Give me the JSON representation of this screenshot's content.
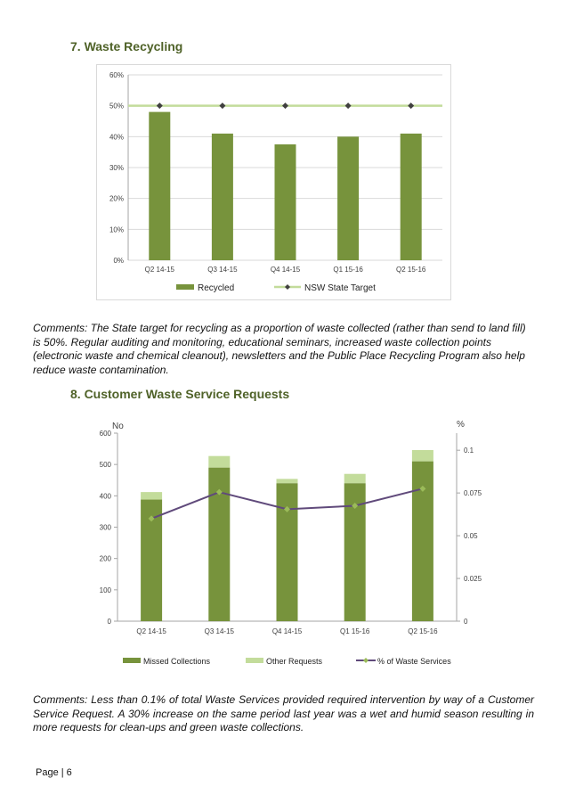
{
  "section7": {
    "title": "7.  Waste Recycling"
  },
  "section8": {
    "title": "8.  Customer Waste Service Requests"
  },
  "comment7": "Comments: The State target for recycling as a proportion of waste collected (rather than send to land fill) is 50%. Regular auditing and monitoring, educational seminars, increased waste collection points (electronic waste and chemical cleanout), newsletters and the Public Place Recycling Program also help reduce waste contamination.",
  "comment8": "Comments: Less than 0.1% of total Waste Services provided required intervention by way of a Customer Service Request. A 30% increase on the same period last year was a wet and humid season resulting in more requests for clean-ups and green waste collections.",
  "footer": "Page | 6",
  "colors": {
    "bar": "#77933c",
    "bar_light": "#c3dc9b",
    "target_line": "#c3dc9b",
    "marker": "#404040",
    "line": "#604a7b",
    "title": "#4f6228"
  },
  "chart_data": [
    {
      "type": "bar",
      "title": "",
      "categories": [
        "Q2 14-15",
        "Q3 14-15",
        "Q4 14-15",
        "Q1 15-16",
        "Q2 15-16"
      ],
      "series": [
        {
          "name": "Recycled",
          "type": "bar",
          "values": [
            48,
            41,
            37.5,
            40,
            41
          ]
        },
        {
          "name": "NSW State Target",
          "type": "line",
          "values": [
            50,
            50,
            50,
            50,
            50
          ]
        }
      ],
      "ylim": [
        0,
        60
      ],
      "yticks": [
        0,
        10,
        20,
        30,
        40,
        50,
        60
      ],
      "ytick_labels": [
        "0%",
        "10%",
        "20%",
        "30%",
        "40%",
        "50%",
        "60%"
      ],
      "xlabel": "",
      "ylabel": ""
    },
    {
      "type": "bar",
      "title": "",
      "categories": [
        "Q2 14-15",
        "Q3 14-15",
        "Q4 14-15",
        "Q1 15-16",
        "Q2 15-16"
      ],
      "series": [
        {
          "name": "Missed Collections",
          "type": "bar",
          "stack": true,
          "values": [
            388,
            490,
            440,
            440,
            510
          ]
        },
        {
          "name": "Other Requests",
          "type": "bar",
          "stack": true,
          "values": [
            24,
            37,
            14,
            30,
            36
          ]
        },
        {
          "name": "% of Waste Services",
          "type": "line",
          "axis": "right",
          "values": [
            0.06,
            0.0755,
            0.0655,
            0.0675,
            0.0775
          ]
        }
      ],
      "ylabel": "No",
      "ylim": [
        0,
        600
      ],
      "yticks": [
        0,
        100,
        200,
        300,
        400,
        500,
        600
      ],
      "ytick_labels": [
        "0",
        "100",
        "200",
        "300",
        "400",
        "500",
        "600"
      ],
      "y2label": "%",
      "y2lim": [
        0,
        0.11
      ],
      "y2ticks": [
        0,
        0.025,
        0.05,
        0.075,
        0.1
      ],
      "y2tick_labels": [
        "0",
        "0.025",
        "0.05",
        "0.075",
        "0.1"
      ],
      "xlabel": ""
    }
  ]
}
